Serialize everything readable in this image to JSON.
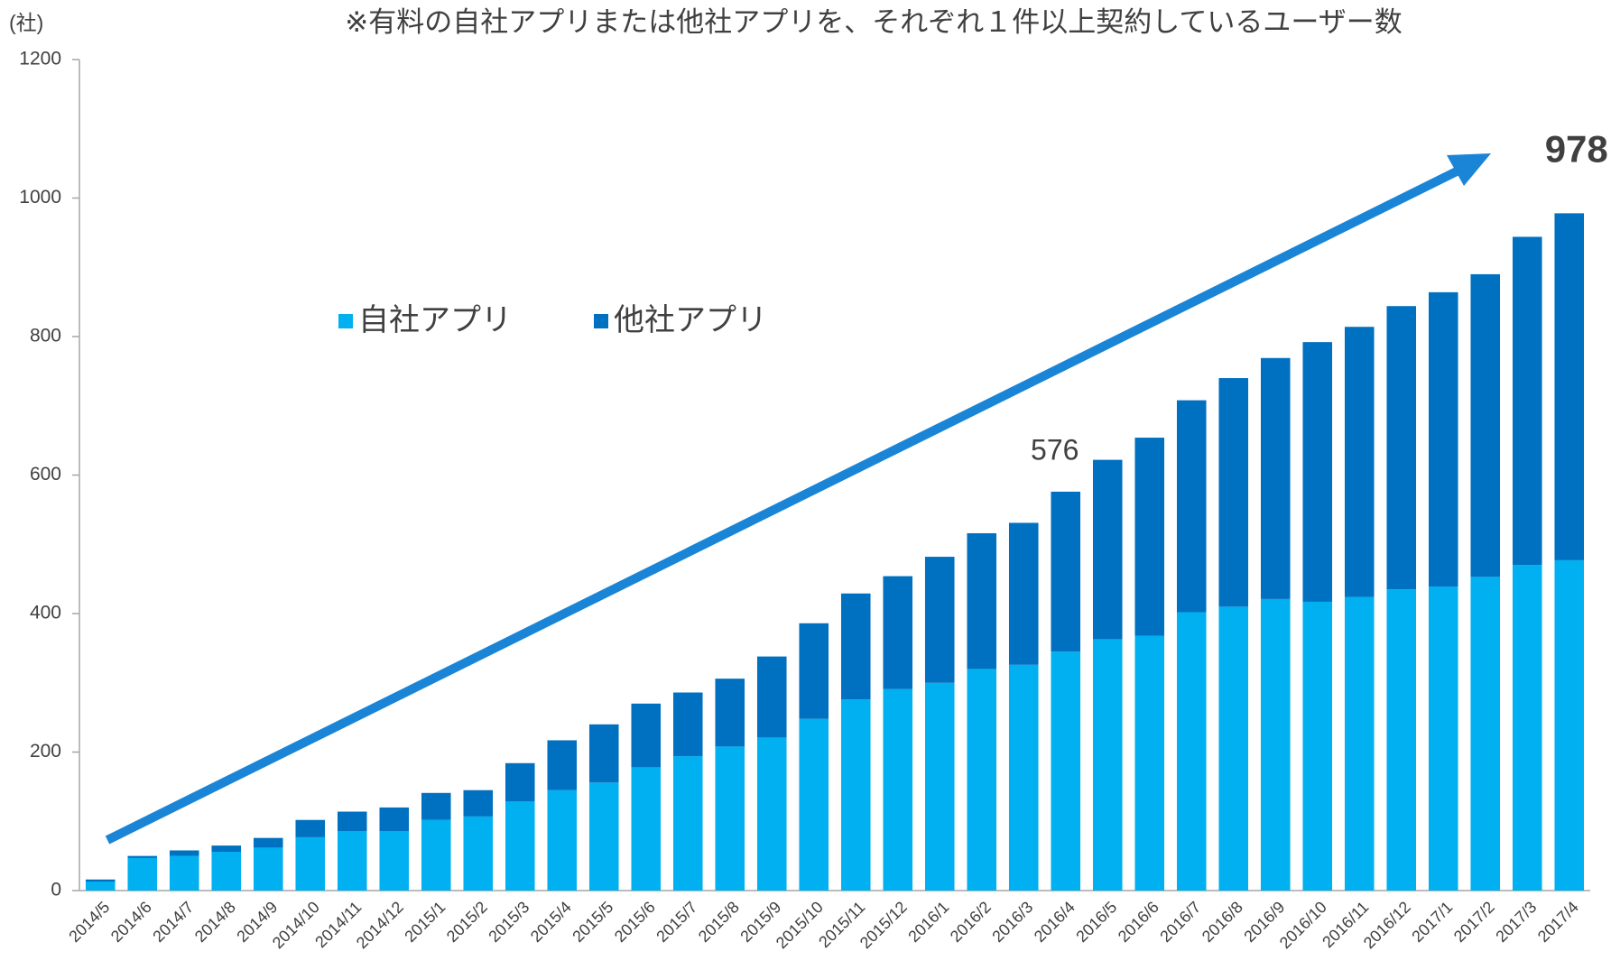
{
  "chart_data": {
    "type": "stacked_bar",
    "title": "※有料の自社アプリまたは他社アプリを、それぞれ１件以上契約しているユーザー数",
    "y_axis_label": "(社)",
    "categories": [
      "2014/5",
      "2014/6",
      "2014/7",
      "2014/8",
      "2014/9",
      "2014/10",
      "2014/11",
      "2014/12",
      "2015/1",
      "2015/2",
      "2015/3",
      "2015/4",
      "2015/5",
      "2015/6",
      "2015/7",
      "2015/8",
      "2015/9",
      "2015/10",
      "2015/11",
      "2015/12",
      "2016/1",
      "2016/2",
      "2016/3",
      "2016/4",
      "2016/5",
      "2016/6",
      "2016/7",
      "2016/8",
      "2016/9",
      "2016/10",
      "2016/11",
      "2016/12",
      "2017/1",
      "2017/2",
      "2017/3",
      "2017/4"
    ],
    "series": [
      {
        "name": "自社アプリ",
        "color": "#00b0f0",
        "values": [
          13,
          47,
          50,
          56,
          62,
          77,
          86,
          86,
          102,
          107,
          129,
          145,
          156,
          178,
          194,
          208,
          221,
          248,
          276,
          291,
          300,
          320,
          326,
          345,
          363,
          368,
          402,
          410,
          421,
          417,
          424,
          435,
          439,
          453,
          470,
          477
        ]
      },
      {
        "name": "他社アプリ",
        "color": "#0070c0",
        "values": [
          3,
          3,
          8,
          9,
          14,
          25,
          28,
          34,
          39,
          38,
          55,
          72,
          84,
          92,
          92,
          98,
          117,
          138,
          153,
          163,
          182,
          196,
          205,
          231,
          259,
          286,
          306,
          330,
          348,
          375,
          390,
          409,
          425,
          437,
          474,
          501
        ]
      }
    ],
    "annotations": [
      {
        "text": "576",
        "category": "2016/4"
      },
      {
        "text": "978",
        "category": "2017/4"
      }
    ],
    "ylim": [
      0,
      1200
    ],
    "yticks": [
      0,
      200,
      400,
      600,
      800,
      1000,
      1200
    ],
    "grid": false
  }
}
